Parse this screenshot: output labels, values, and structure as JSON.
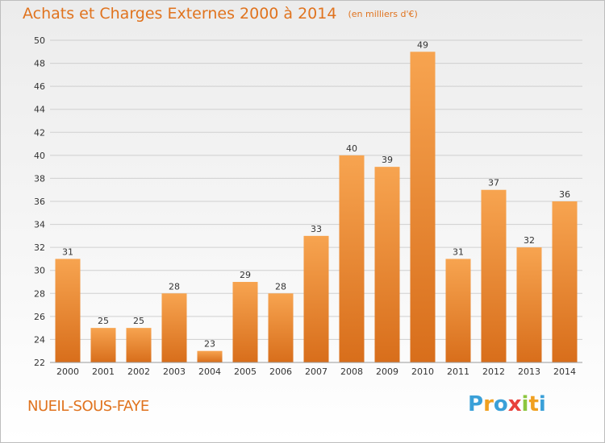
{
  "header": {
    "title": "Achats et Charges Externes 2000 à 2014",
    "unit": "(en milliers d'€)"
  },
  "footer": {
    "commune": "NUEIL-SOUS-FAYE",
    "logo_text": "Proxiti",
    "logo_letters": [
      {
        "ch": "P",
        "color": "#3aa0d8"
      },
      {
        "ch": "r",
        "color": "#f0a020"
      },
      {
        "ch": "o",
        "color": "#3aa0d8"
      },
      {
        "ch": "x",
        "color": "#e8413c"
      },
      {
        "ch": "i",
        "color": "#8cc63f"
      },
      {
        "ch": "t",
        "color": "#f0a020"
      },
      {
        "ch": "i",
        "color": "#3aa0d8"
      }
    ]
  },
  "colors": {
    "accent": "#e0731e",
    "bar_light": "#f7a450",
    "bar_dark": "#d86e1b",
    "grid": "#cfcfcf",
    "axis_text": "#333333"
  },
  "chart_data": {
    "type": "bar",
    "title": "Achats et Charges Externes 2000 à 2014",
    "categories": [
      "2000",
      "2001",
      "2002",
      "2003",
      "2004",
      "2005",
      "2006",
      "2007",
      "2008",
      "2009",
      "2010",
      "2011",
      "2012",
      "2013",
      "2014"
    ],
    "values": [
      31,
      25,
      25,
      28,
      23,
      29,
      28,
      33,
      40,
      39,
      49,
      31,
      37,
      32,
      36
    ],
    "ylim": [
      22,
      50
    ],
    "yticks": [
      22,
      24,
      26,
      28,
      30,
      32,
      34,
      36,
      38,
      40,
      42,
      44,
      46,
      48,
      50
    ],
    "grid": true,
    "data_labels": true
  }
}
